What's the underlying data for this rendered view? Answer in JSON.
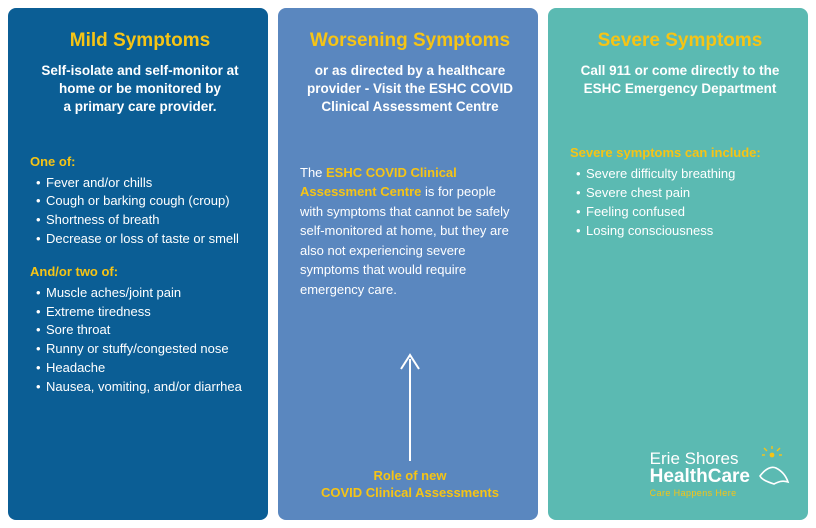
{
  "colors": {
    "accent": "#f6c415",
    "mild_bg": "#0b5e95",
    "worsen_bg": "#5a87bf",
    "severe_bg": "#5bbab2",
    "arrow": "#ffffff"
  },
  "mild": {
    "title": "Mild Symptoms",
    "subtitle": "Self-isolate and self-monitor at home or be monitored by a primary care provider.",
    "lead1": "One of:",
    "list1": [
      "Fever and/or chills",
      "Cough or barking cough (croup)",
      "Shortness of breath",
      "Decrease or loss of taste or smell"
    ],
    "lead2": "And/or two of:",
    "list2": [
      "Muscle aches/joint pain",
      "Extreme tiredness",
      "Sore throat",
      "Runny or stuffy/congested nose",
      "Headache",
      "Nausea, vomiting, and/or diarrhea"
    ]
  },
  "worsen": {
    "title": "Worsening Symptoms",
    "subtitle": "or as directed by a healthcare provider - Visit the ESHC COVID Clinical Assessment Centre",
    "para_hl": "ESHC COVID Clinical Assessment Centre",
    "para_pre": "The ",
    "para_post": " is for people with symptoms that cannot be safely self-monitored at home, but they are also not experiencing severe symptoms that would require emergency care.",
    "caption_l1": "Role of new",
    "caption_l2": "COVID Clinical Assessments"
  },
  "severe": {
    "title": "Severe Symptoms",
    "subtitle": "Call 911 or come directly to the ESHC Emergency Department",
    "lead": "Severe symptoms can include:",
    "list": [
      "Severe difficulty breathing",
      "Severe chest pain",
      "Feeling confused",
      "Losing consciousness"
    ]
  },
  "logo": {
    "line1": "Erie Shores",
    "line2": "HealthCare",
    "tagline": "Care Happens Here"
  }
}
